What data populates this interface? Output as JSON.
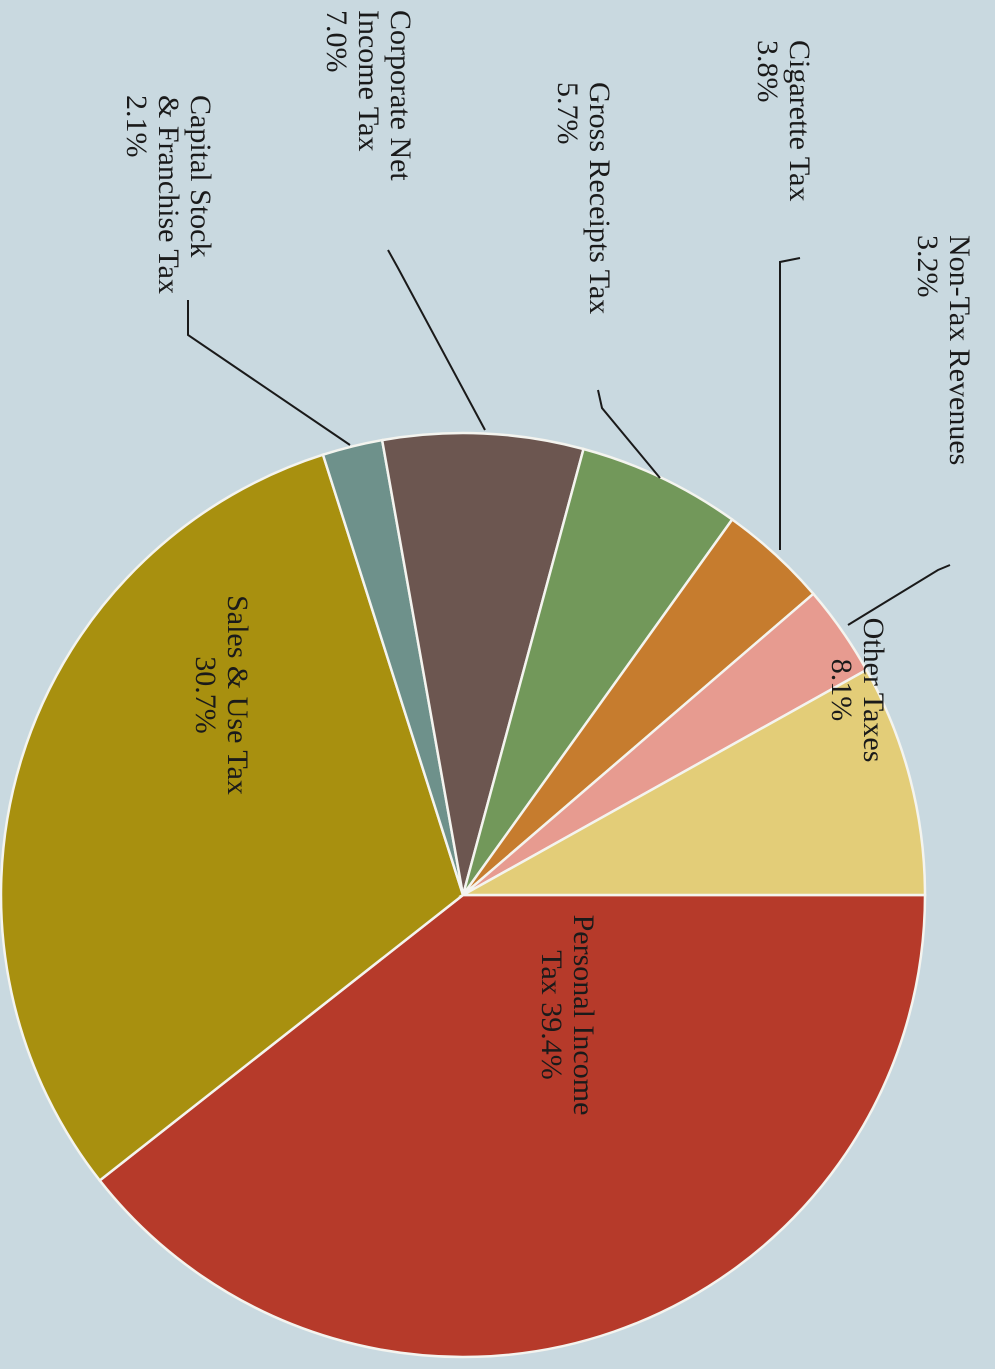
{
  "chart_data": {
    "type": "pie",
    "slices": [
      {
        "label": [
          "Personal Income",
          "Tax 39.4%"
        ],
        "value": 39.4,
        "color": "#b63a2a",
        "callout": false
      },
      {
        "label": [
          "Sales & Use Tax",
          "30.7%"
        ],
        "value": 30.7,
        "color": "#a8900f",
        "callout": false
      },
      {
        "label": [
          "Capital Stock",
          "& Franchise Tax",
          "2.1%"
        ],
        "value": 2.1,
        "color": "#6e918b",
        "callout": true
      },
      {
        "label": [
          "Corporate Net",
          "Income Tax",
          "7.0%"
        ],
        "value": 7.0,
        "color": "#6c5650",
        "callout": true
      },
      {
        "label": [
          "Gross Receipts Tax",
          "5.7%"
        ],
        "value": 5.7,
        "color": "#72985a",
        "callout": true
      },
      {
        "label": [
          "Cigarette Tax",
          "3.8%"
        ],
        "value": 3.8,
        "color": "#c67c2e",
        "callout": true
      },
      {
        "label": [
          "Non-Tax Revenues",
          "3.2%"
        ],
        "value": 3.2,
        "color": "#e79b90",
        "callout": true
      },
      {
        "label": [
          "Other Taxes",
          "8.1%"
        ],
        "value": 8.1,
        "color": "#e3cd78",
        "callout": false
      }
    ]
  }
}
